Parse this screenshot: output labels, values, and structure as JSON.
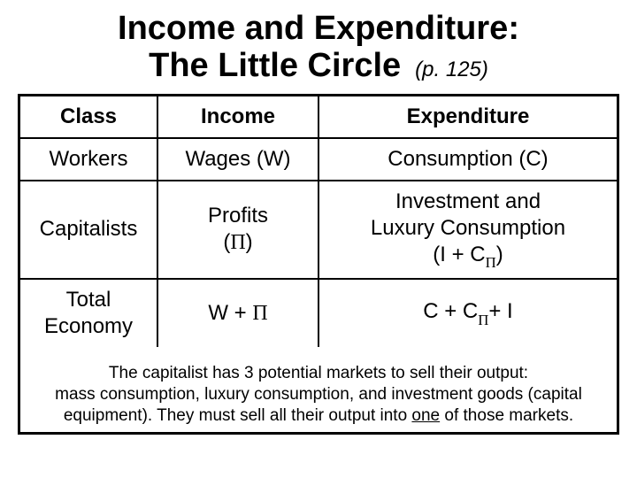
{
  "title": {
    "line1": "Income and Expenditure:",
    "line2": "The Little Circle",
    "page_ref": "(p. 125)"
  },
  "table": {
    "headers": {
      "c1": "Class",
      "c2": "Income",
      "c3": "Expenditure"
    },
    "rows": [
      {
        "c1": "Workers",
        "c2": "Wages (W)",
        "c3": "Consumption (C)"
      },
      {
        "c1": "Capitalists",
        "c2_l1": "Profits",
        "c2_l2a": "(",
        "c2_l2b": "Π",
        "c2_l2c": ")",
        "c3_l1": "Investment and",
        "c3_l2": "Luxury Consumption",
        "c3_l3a": "(I + C",
        "c3_l3b": "Π",
        "c3_l3c": ")"
      },
      {
        "c1_l1": "Total",
        "c1_l2": "Economy",
        "c2a": "W + ",
        "c2b": "Π",
        "c3a": "C + C",
        "c3b": "Π",
        "c3c": "+ I"
      }
    ]
  },
  "footnote": {
    "l1": "The capitalist has 3 potential markets to sell their output:",
    "l2a": "mass consumption, luxury consumption, and investment goods (capital",
    "l2b": "equipment). They must sell all their output into ",
    "l2c": "one",
    "l2d": " of those markets."
  },
  "colors": {
    "text": "#000000",
    "background": "#ffffff",
    "border": "#000000"
  }
}
